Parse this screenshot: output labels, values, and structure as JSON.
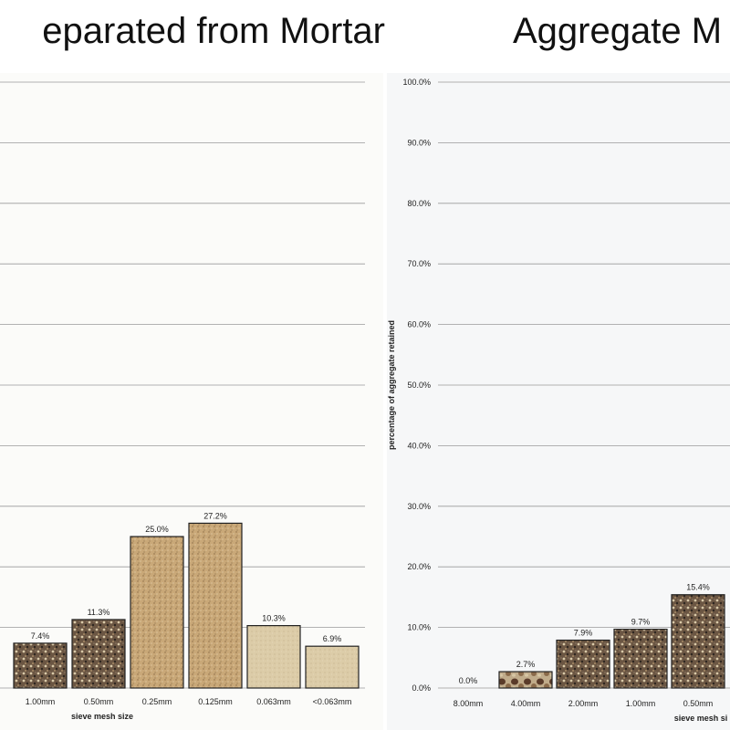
{
  "colors": {
    "grid": "#9a9a9a",
    "bar_outline": "#222222",
    "bar_coarse": "#5a4a3a",
    "bar_sand": "#c8a677",
    "bar_fine": "#d8c9a6"
  },
  "chart_data": [
    {
      "type": "bar",
      "title": "eparated from Mortar",
      "xlabel": "sieve mesh size",
      "ylabel": "",
      "ylim": [
        0,
        100
      ],
      "categories": [
        "",
        "1.00mm",
        "0.50mm",
        "0.25mm",
        "0.125mm",
        "0.063mm",
        "<0.063mm"
      ],
      "values": [
        null,
        7.4,
        11.3,
        25.0,
        27.2,
        10.3,
        6.9
      ],
      "value_labels": [
        "",
        "7.4%",
        "11.3%",
        "25.0%",
        "27.2%",
        "10.3%",
        "6.9%"
      ],
      "grid": true,
      "texture": [
        "coarse",
        "coarse",
        "coarse",
        "sand",
        "sand",
        "fine",
        "fine"
      ]
    },
    {
      "type": "bar",
      "title": "Aggregate M",
      "xlabel": "sieve mesh si",
      "ylabel": "percentage of aggregate retained",
      "ylim": [
        0,
        100
      ],
      "y_ticks": [
        "0.0%",
        "10.0%",
        "20.0%",
        "30.0%",
        "40.0%",
        "50.0%",
        "60.0%",
        "70.0%",
        "80.0%",
        "90.0%",
        "100.0%"
      ],
      "categories": [
        "8.00mm",
        "4.00mm",
        "2.00mm",
        "1.00mm",
        "0.50mm"
      ],
      "values": [
        0.0,
        2.7,
        7.9,
        9.7,
        15.4
      ],
      "value_labels": [
        "0.0%",
        "2.7%",
        "7.9%",
        "9.7%",
        "15.4%"
      ],
      "grid": true,
      "texture": [
        "pebble",
        "pebble",
        "coarse",
        "coarse",
        "coarse"
      ]
    }
  ]
}
